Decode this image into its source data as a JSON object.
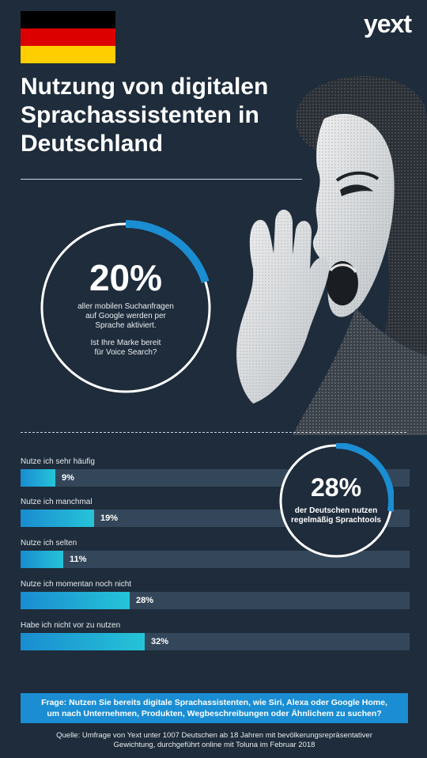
{
  "logo": "yext",
  "colors": {
    "flag_black": "#000000",
    "flag_red": "#dd0000",
    "flag_gold": "#ffce00",
    "accent": "#1b8dd2",
    "background": "#1e2c3b"
  },
  "title_lines": [
    "Nutzung von digitalen",
    "Sprachassistenten in",
    "Deutschland"
  ],
  "stat1": {
    "value_label": "20%",
    "value": 20,
    "lines": [
      "aller mobilen Suchanfragen",
      "auf Google werden per",
      "Sprache aktiviert."
    ],
    "question_lines": [
      "Ist Ihre Marke bereit",
      "für Voice Search?"
    ]
  },
  "stat2": {
    "value_label": "28%",
    "value": 28,
    "lines": [
      "der Deutschen nutzen",
      "regelmäßig Sprachtools"
    ]
  },
  "chart_data": {
    "type": "bar",
    "orientation": "horizontal",
    "categories": [
      "Nutze ich sehr häufig",
      "Nutze ich manchmal",
      "Nutze ich selten",
      "Nutze ich momentan noch nicht",
      "Habe ich nicht vor zu nutzen"
    ],
    "values": [
      9,
      19,
      11,
      28,
      32
    ],
    "value_labels": [
      "9%",
      "19%",
      "11%",
      "28%",
      "32%"
    ],
    "xlim": [
      0,
      100
    ],
    "grid": false
  },
  "question_lines": [
    "Frage: Nutzen Sie bereits digitale Sprachassistenten, wie Siri, Alexa oder Google Home,",
    "um nach Unternehmen, Produkten, Wegbeschreibungen oder Ähnlichem zu suchen?"
  ],
  "source_lines": [
    "Quelle: Umfrage von Yext unter 1007 Deutschen ab 18 Jahren mit bevölkerungsrepräsentativer",
    "Gewichtung, durchgeführt online mit Toluna im Februar 2018"
  ]
}
